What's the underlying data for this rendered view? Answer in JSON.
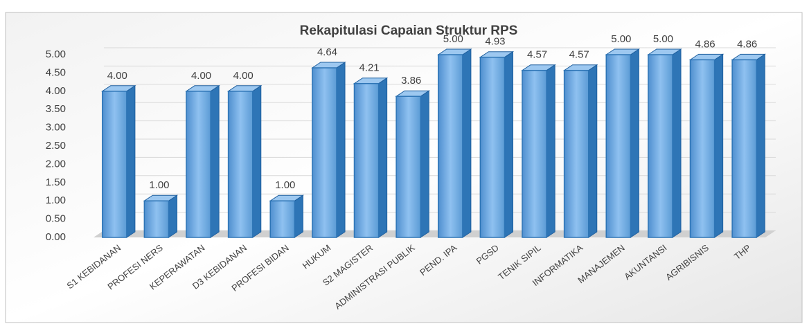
{
  "chart_data": {
    "type": "bar3d",
    "title": "Rekapitulasi Capaian  Struktur RPS",
    "categories": [
      "S1 KEBIDANAN",
      "PROFESI NERS",
      "KEPERAWATAN",
      "D3 KEBIDANAN",
      "PROFESI BIDAN",
      "HUKUM",
      "S2 MAGISTER",
      "ADMINISTRASI PUBLIK",
      "PEND. IPA",
      "PGSD",
      "TENIK SIPIL",
      "INFORMATIKA",
      "MANAJEMEN",
      "AKUNTANSI",
      "AGRIBISNIS",
      "THP"
    ],
    "values": [
      4,
      1,
      4,
      4,
      1,
      4.64,
      4.21,
      3.86,
      5,
      4.93,
      4.57,
      4.57,
      5,
      5,
      4.86,
      4.86
    ],
    "value_labels": [
      "4.00",
      "1.00",
      "4.00",
      "4.00",
      "1.00",
      "4.64",
      "4.21",
      "3.86",
      "5.00",
      "4.93",
      "4.57",
      "4.57",
      "5.00",
      "5.00",
      "4.86",
      "4.86"
    ],
    "color": "#5b9bd5",
    "ylim": [
      0,
      5
    ],
    "yticks": [
      {
        "value": 0,
        "label": "0.00"
      },
      {
        "value": 0.5,
        "label": "0.50"
      },
      {
        "value": 1,
        "label": "1.00"
      },
      {
        "value": 1.5,
        "label": "1.50"
      },
      {
        "value": 2,
        "label": "2.00"
      },
      {
        "value": 2.5,
        "label": "2.50"
      },
      {
        "value": 3,
        "label": "3.00"
      },
      {
        "value": 3.5,
        "label": "3.50"
      },
      {
        "value": 4,
        "label": "4.00"
      },
      {
        "value": 4.5,
        "label": "4.50"
      },
      {
        "value": 5,
        "label": "5.00"
      }
    ],
    "grid": true
  }
}
